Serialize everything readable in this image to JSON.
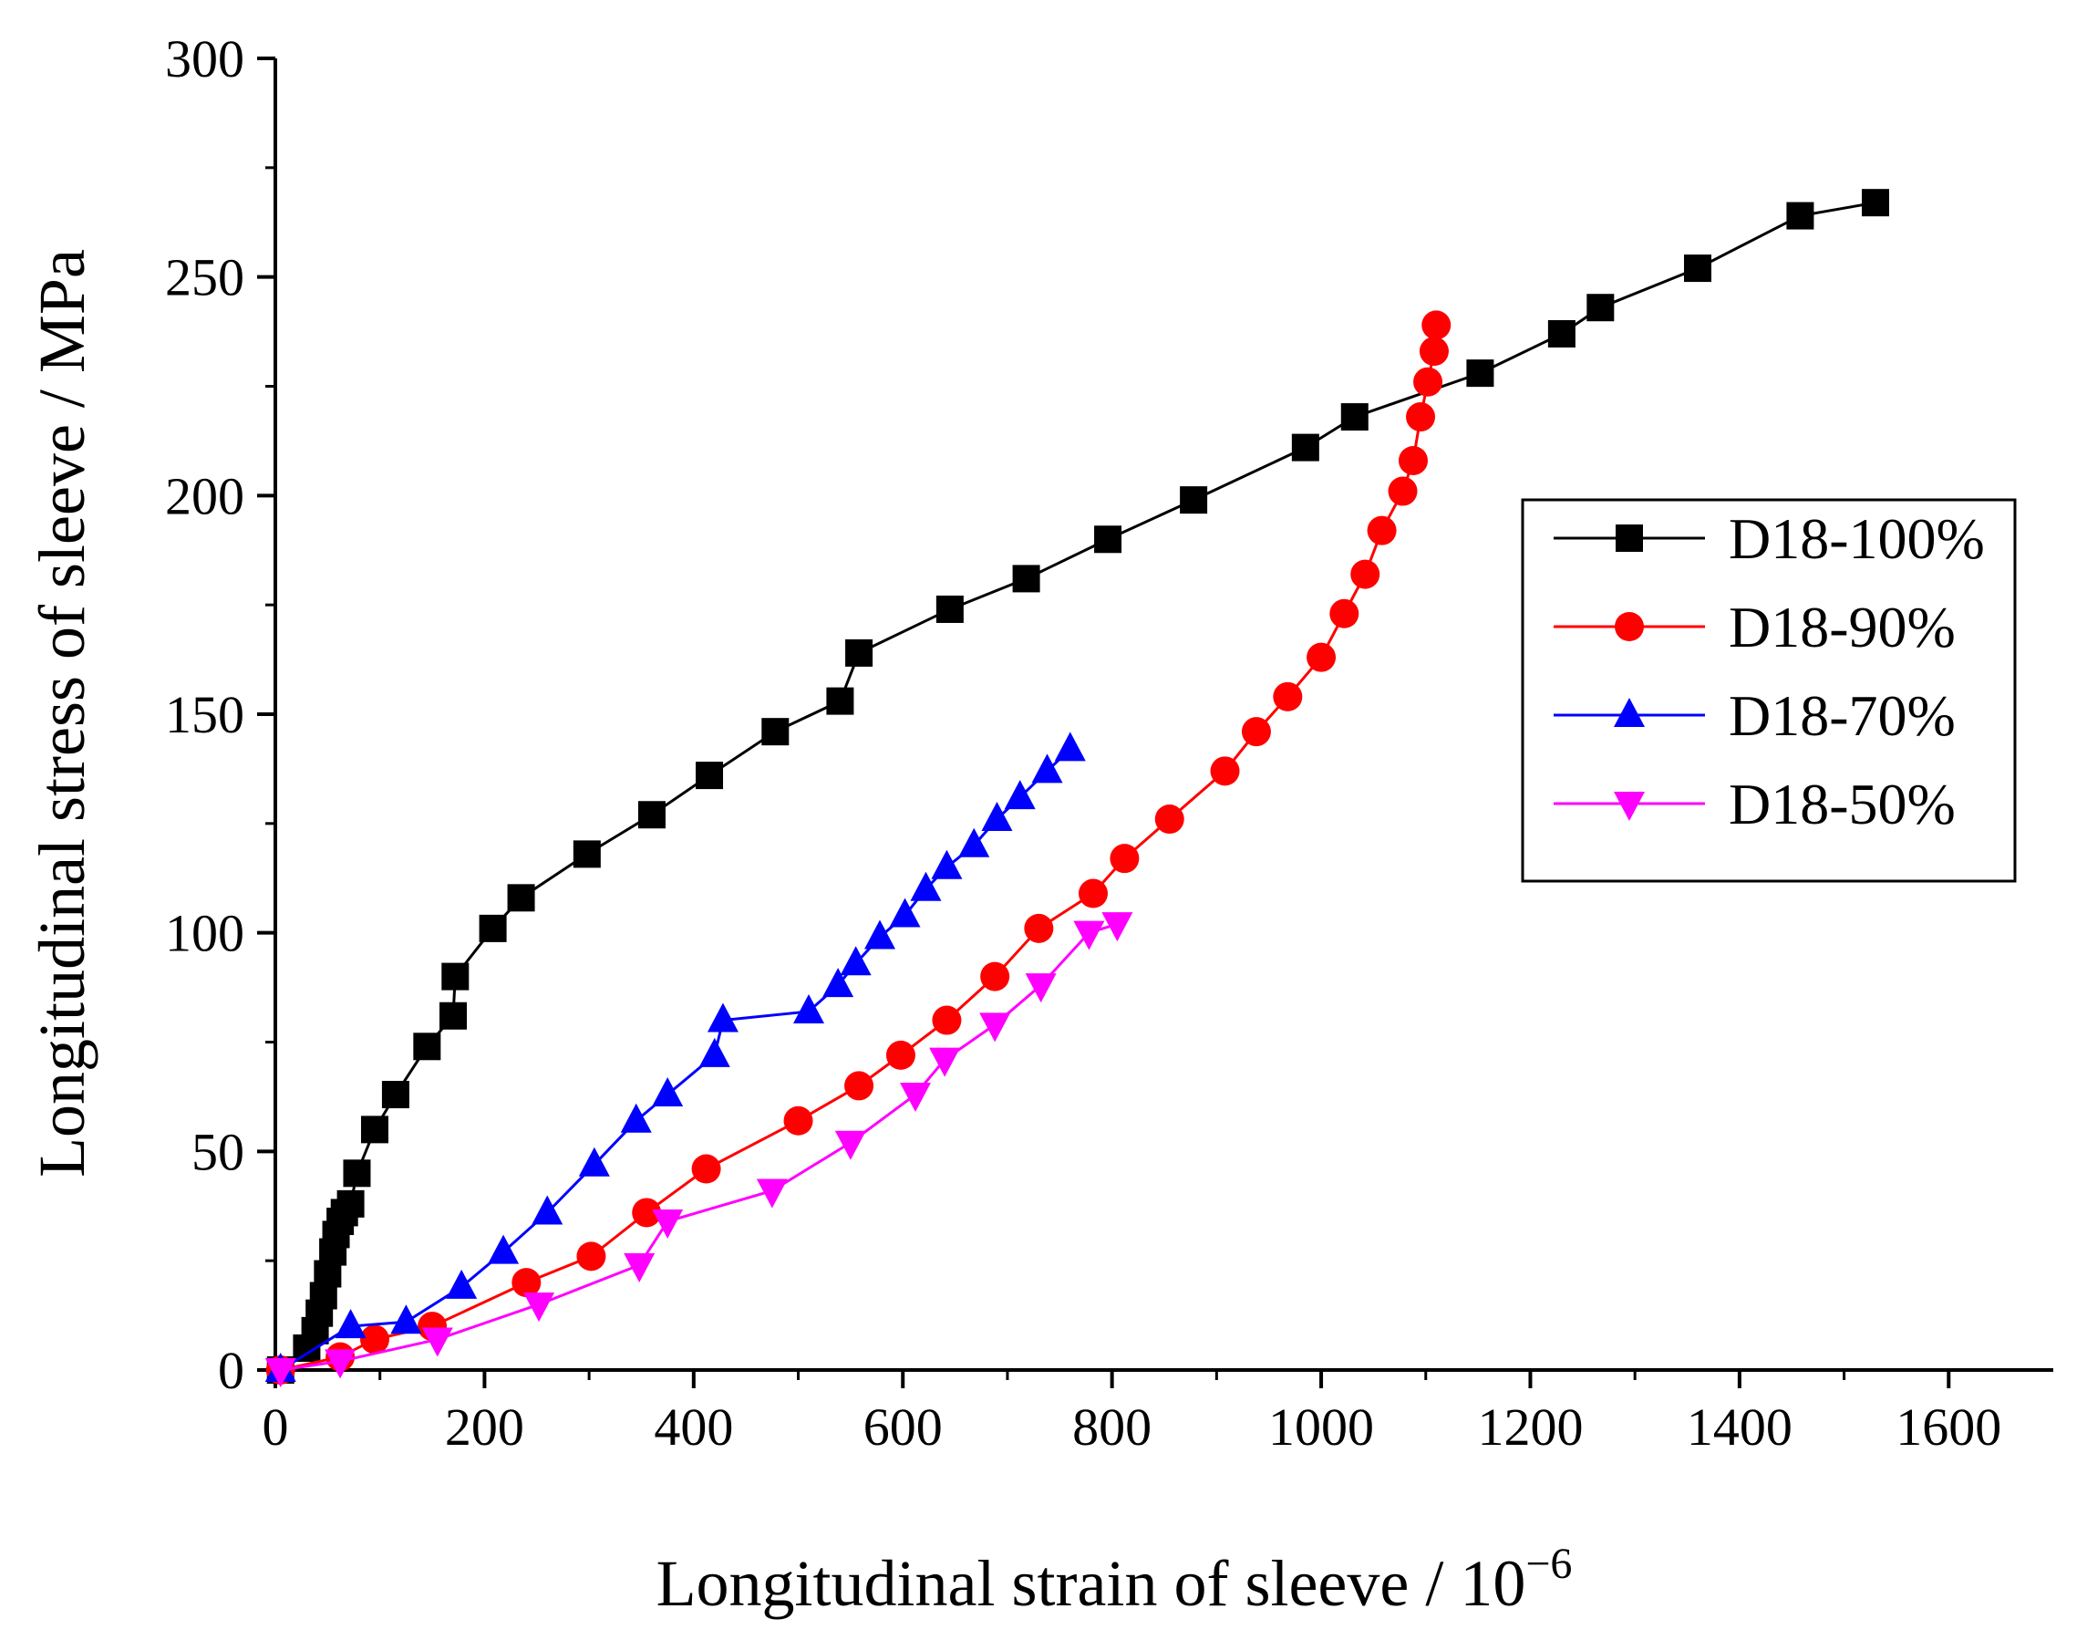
{
  "chart_data": {
    "type": "line",
    "xlabel": "Longitudinal strain of sleeve / 10",
    "xlabel_superscript": "−6",
    "ylabel": "Longitudinal stress of sleeve / MPa",
    "xlim": [
      0,
      1700
    ],
    "ylim": [
      0,
      300
    ],
    "xticks": [
      0,
      200,
      400,
      600,
      800,
      1000,
      1200,
      1400,
      1600
    ],
    "yticks": [
      0,
      50,
      100,
      150,
      200,
      250,
      300
    ],
    "grid": false,
    "legend_position": "right",
    "series": [
      {
        "name": "D18-100%",
        "color": "#000000",
        "marker": "square",
        "x": [
          5,
          30,
          38,
          42,
          46,
          50,
          55,
          58,
          62,
          66,
          72,
          78,
          95,
          115,
          145,
          170,
          172,
          208,
          235,
          298,
          360,
          415,
          478,
          540,
          558,
          645,
          718,
          796,
          878,
          985,
          1032,
          1152,
          1230,
          1267,
          1360,
          1458,
          1530
        ],
        "y": [
          0,
          5,
          9,
          13,
          17,
          22,
          27,
          31,
          34,
          36,
          38,
          45,
          55,
          63,
          74,
          81,
          90,
          101,
          108,
          118,
          127,
          136,
          146,
          153,
          164,
          174,
          181,
          190,
          199,
          211,
          218,
          228,
          237,
          243,
          252,
          264,
          267
        ]
      },
      {
        "name": "D18-90%",
        "color": "#ff0000",
        "marker": "circle",
        "x": [
          5,
          62,
          95,
          150,
          240,
          302,
          355,
          412,
          500,
          558,
          598,
          642,
          688,
          730,
          782,
          812,
          855,
          908,
          938,
          968,
          1000,
          1022,
          1042,
          1058,
          1078,
          1088,
          1095,
          1102,
          1108,
          1110
        ],
        "y": [
          0,
          3,
          7,
          10,
          20,
          26,
          36,
          46,
          57,
          65,
          72,
          80,
          90,
          101,
          109,
          117,
          126,
          137,
          146,
          154,
          163,
          173,
          182,
          192,
          201,
          208,
          218,
          226,
          233,
          239
        ]
      },
      {
        "name": "D18-70%",
        "color": "#0000ff",
        "marker": "triangle-up",
        "x": [
          5,
          72,
          125,
          178,
          218,
          260,
          305,
          345,
          375,
          420,
          428,
          510,
          538,
          555,
          578,
          602,
          622,
          642,
          668,
          690,
          712,
          738,
          760
        ],
        "y": [
          0,
          10,
          11,
          19,
          27,
          36,
          47,
          57,
          63,
          72,
          80,
          82,
          88,
          93,
          99,
          104,
          110,
          115,
          120,
          126,
          131,
          137,
          142
        ]
      },
      {
        "name": "D18-50%",
        "color": "#ff00ff",
        "marker": "triangle-down",
        "x": [
          5,
          62,
          155,
          252,
          348,
          375,
          475,
          550,
          612,
          640,
          688,
          732,
          778,
          805
        ],
        "y": [
          0,
          2,
          7,
          15,
          24,
          34,
          41,
          52,
          63,
          71,
          79,
          88,
          100,
          102
        ]
      }
    ]
  }
}
